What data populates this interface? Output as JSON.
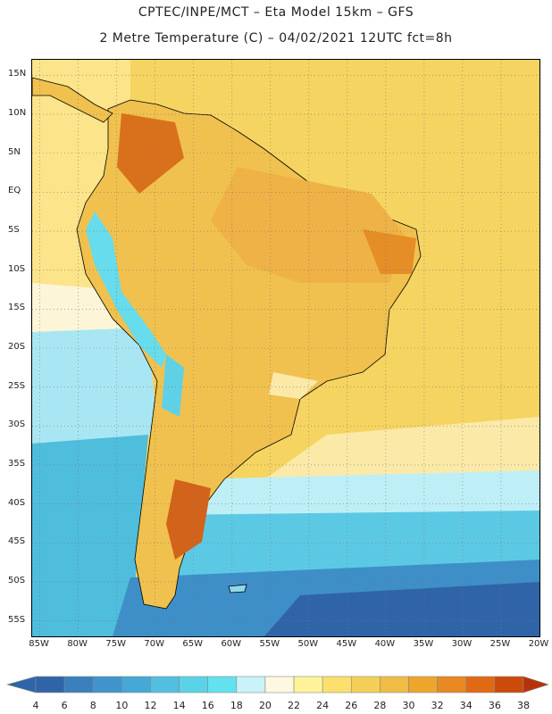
{
  "header": {
    "line1": "CPTEC/INPE/MCT –  Eta Model 15km – GFS",
    "line2": "2 Metre Temperature (C) – 04/02/2021 12UTC fct=8h"
  },
  "map": {
    "lat_labels": [
      "15N",
      "10N",
      "5N",
      "EQ",
      "5S",
      "10S",
      "15S",
      "20S",
      "25S",
      "30S",
      "35S",
      "40S",
      "45S",
      "50S",
      "55S"
    ],
    "lon_labels": [
      "85W",
      "80W",
      "75W",
      "70W",
      "65W",
      "60W",
      "55W",
      "50W",
      "45W",
      "40W",
      "35W",
      "30W",
      "25W",
      "20W"
    ],
    "lat_range": [
      17,
      -57
    ],
    "lon_range": [
      -86,
      -20
    ],
    "grid": "dotted"
  },
  "legend": {
    "levels": [
      "4",
      "6",
      "8",
      "10",
      "12",
      "14",
      "16",
      "18",
      "20",
      "22",
      "24",
      "26",
      "28",
      "30",
      "32",
      "34",
      "36",
      "38"
    ],
    "colors": [
      "#2f64a8",
      "#3a7fbe",
      "#3f94cc",
      "#45a8d6",
      "#52bfe0",
      "#5ad3e8",
      "#62e2ef",
      "#c9f3f8",
      "#fff8e0",
      "#fff39a",
      "#fbe06e",
      "#f4cf58",
      "#efbc46",
      "#eda52e",
      "#e88922",
      "#e06a14",
      "#cc4a0a",
      "#b7320a"
    ]
  }
}
